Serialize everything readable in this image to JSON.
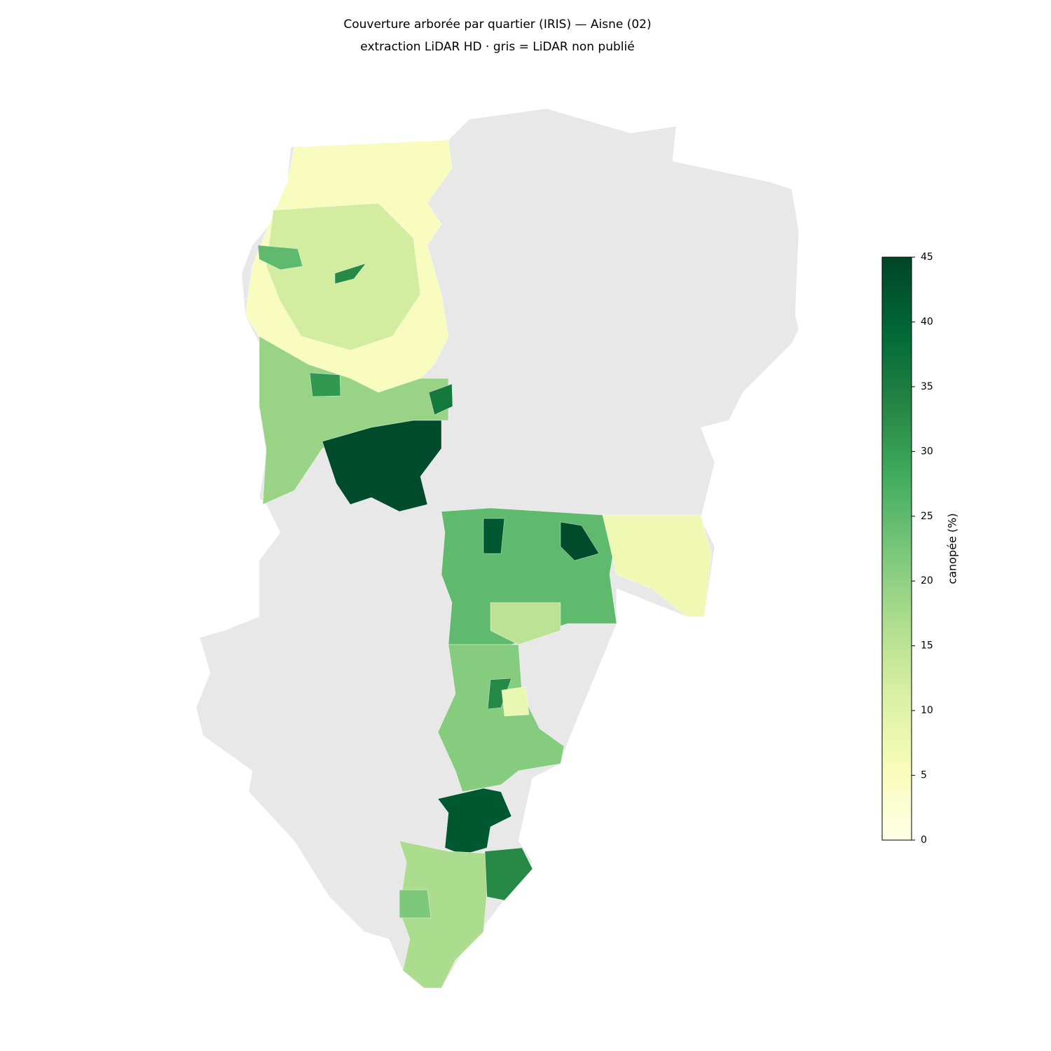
{
  "chart_data": {
    "type": "choropleth",
    "title": "Couverture arborée par quartier (IRIS) — Aisne (02)",
    "subtitle": "extraction LiDAR HD · gris = LiDAR non publié",
    "colorbar_label": "canopée (%)",
    "colorscale": [
      "#ffffe5",
      "#f7fcb9",
      "#d9f0a3",
      "#addd8e",
      "#78c679",
      "#41ab5d",
      "#238443",
      "#006837",
      "#004529"
    ],
    "missing_color": "#e8e8e8",
    "clim": [
      0,
      45
    ],
    "cticks": [
      0,
      5,
      10,
      15,
      20,
      25,
      30,
      35,
      40,
      45
    ],
    "values": [
      5,
      12,
      25,
      33,
      19,
      44,
      36,
      31,
      25,
      42,
      44,
      7,
      15,
      21,
      33,
      8,
      42,
      17,
      33,
      22
    ]
  }
}
